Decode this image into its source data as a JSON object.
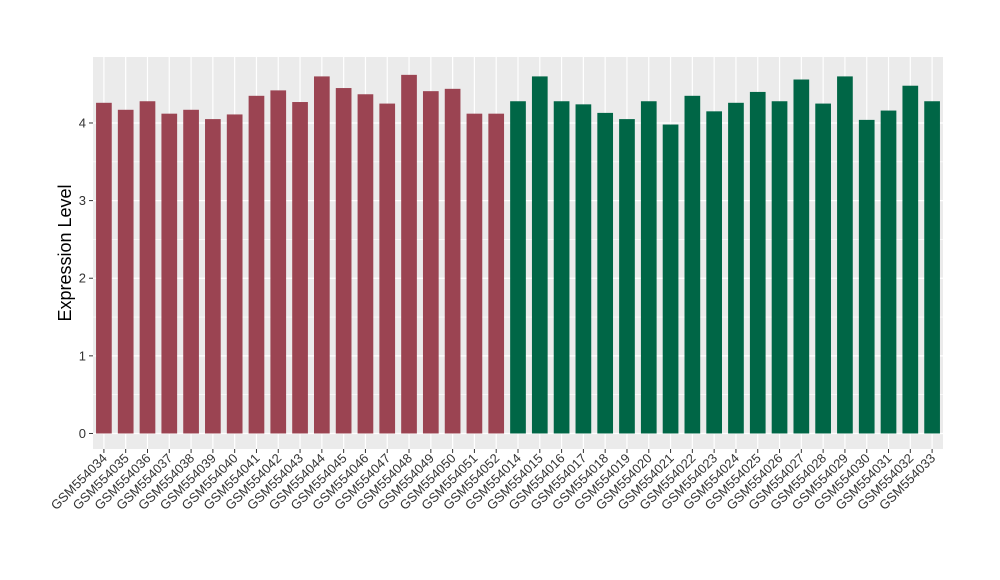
{
  "chart_data": {
    "type": "bar",
    "title": "",
    "xlabel": "",
    "ylabel": "Expression Level",
    "ylim": [
      -0.2,
      4.85
    ],
    "yticks": [
      0,
      1,
      2,
      3,
      4
    ],
    "grid": true,
    "legend": "none",
    "colors": {
      "group_a": "#9b4452",
      "group_b": "#006646",
      "panel": "#ebebeb",
      "gridline": "#ffffff"
    },
    "categories": [
      "GSM554034",
      "GSM554035",
      "GSM554036",
      "GSM554037",
      "GSM554038",
      "GSM554039",
      "GSM554040",
      "GSM554041",
      "GSM554042",
      "GSM554043",
      "GSM554044",
      "GSM554045",
      "GSM554046",
      "GSM554047",
      "GSM554048",
      "GSM554049",
      "GSM554050",
      "GSM554051",
      "GSM554052",
      "GSM554014",
      "GSM554015",
      "GSM554016",
      "GSM554017",
      "GSM554018",
      "GSM554019",
      "GSM554020",
      "GSM554021",
      "GSM554022",
      "GSM554023",
      "GSM554024",
      "GSM554025",
      "GSM554026",
      "GSM554027",
      "GSM554028",
      "GSM554029",
      "GSM554030",
      "GSM554031",
      "GSM554032",
      "GSM554033"
    ],
    "values": [
      4.26,
      4.17,
      4.28,
      4.12,
      4.17,
      4.05,
      4.11,
      4.35,
      4.42,
      4.27,
      4.6,
      4.45,
      4.37,
      4.25,
      4.62,
      4.41,
      4.44,
      4.12,
      4.12,
      4.28,
      4.6,
      4.28,
      4.24,
      4.13,
      4.05,
      4.28,
      3.98,
      4.35,
      4.15,
      4.26,
      4.4,
      4.28,
      4.56,
      4.25,
      4.6,
      4.04,
      4.16,
      4.48,
      4.28
    ],
    "groups": [
      "a",
      "a",
      "a",
      "a",
      "a",
      "a",
      "a",
      "a",
      "a",
      "a",
      "a",
      "a",
      "a",
      "a",
      "a",
      "a",
      "a",
      "a",
      "a",
      "b",
      "b",
      "b",
      "b",
      "b",
      "b",
      "b",
      "b",
      "b",
      "b",
      "b",
      "b",
      "b",
      "b",
      "b",
      "b",
      "b",
      "b",
      "b",
      "b"
    ]
  }
}
